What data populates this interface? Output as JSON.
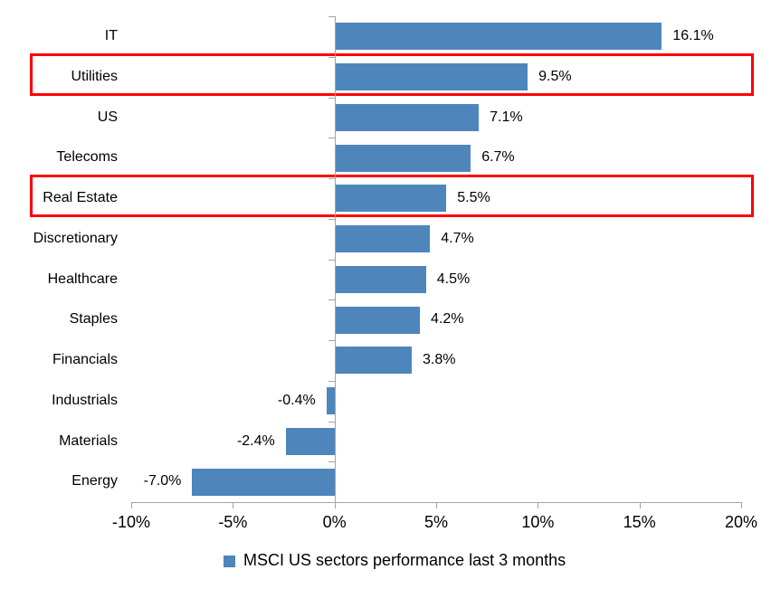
{
  "chart_data": {
    "type": "bar",
    "orientation": "horizontal",
    "title": "",
    "categories": [
      "IT",
      "Utilities",
      "US",
      "Telecoms",
      "Real Estate",
      "Discretionary",
      "Healthcare",
      "Staples",
      "Financials",
      "Industrials",
      "Materials",
      "Energy"
    ],
    "values": [
      16.1,
      9.5,
      7.1,
      6.7,
      5.5,
      4.7,
      4.5,
      4.2,
      3.8,
      -0.4,
      -2.4,
      -7.0
    ],
    "value_labels": [
      "16.1%",
      "9.5%",
      "7.1%",
      "6.7%",
      "5.5%",
      "4.7%",
      "4.5%",
      "4.2%",
      "3.8%",
      "-0.4%",
      "-2.4%",
      "-7.0%"
    ],
    "highlighted_categories": [
      "Utilities",
      "Real Estate"
    ],
    "xlim": [
      -10,
      20
    ],
    "x_ticks": [
      -10,
      -5,
      0,
      5,
      10,
      15,
      20
    ],
    "x_tick_labels": [
      "-10%",
      "-5%",
      "0%",
      "5%",
      "10%",
      "15%",
      "20%"
    ],
    "grid": false,
    "legend_position": "bottom",
    "legend": [
      {
        "label": "MSCI US sectors performance last 3 months",
        "color": "#4E86BC"
      }
    ],
    "bar_color": "#4E86BC",
    "highlight_color": "#FC0204",
    "axis_color": "#A4A4A4",
    "text_color": "#000000"
  }
}
